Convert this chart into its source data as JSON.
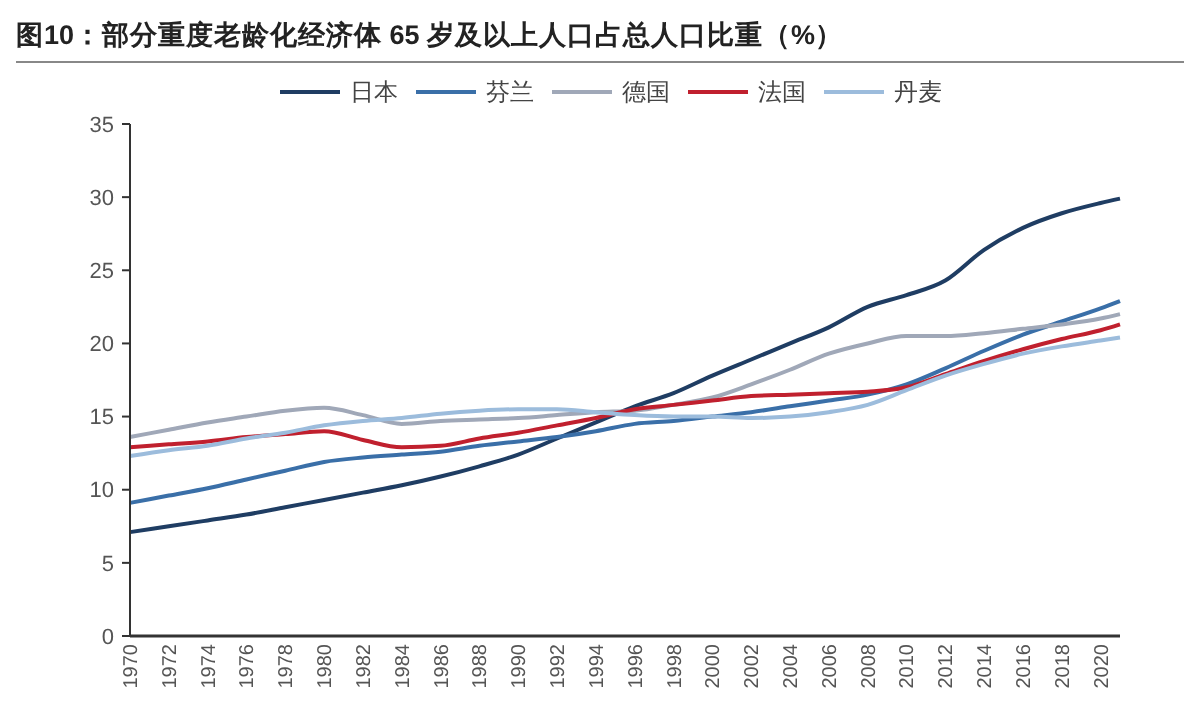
{
  "chart_data": {
    "type": "line",
    "title": "图10：部分重度老龄化经济体 65 岁及以上人口占总人口比重（%）",
    "x": [
      1970,
      1972,
      1974,
      1976,
      1978,
      1980,
      1982,
      1984,
      1986,
      1988,
      1990,
      1992,
      1994,
      1996,
      1998,
      2000,
      2002,
      2004,
      2006,
      2008,
      2010,
      2012,
      2014,
      2016,
      2018,
      2020,
      2021
    ],
    "series": [
      {
        "name": "日本",
        "color": "#1f3d63",
        "values": [
          7.1,
          7.5,
          7.9,
          8.3,
          8.8,
          9.3,
          9.8,
          10.3,
          10.9,
          11.6,
          12.4,
          13.5,
          14.6,
          15.7,
          16.6,
          17.8,
          18.9,
          20.0,
          21.1,
          22.5,
          23.3,
          24.3,
          26.4,
          27.9,
          28.9,
          29.6,
          29.9
        ]
      },
      {
        "name": "芬兰",
        "color": "#3a6fa8",
        "values": [
          9.1,
          9.6,
          10.1,
          10.7,
          11.3,
          11.9,
          12.2,
          12.4,
          12.6,
          13.0,
          13.3,
          13.6,
          14.0,
          14.5,
          14.7,
          15.0,
          15.3,
          15.7,
          16.1,
          16.5,
          17.2,
          18.3,
          19.5,
          20.6,
          21.5,
          22.4,
          22.9
        ]
      },
      {
        "name": "德国",
        "color": "#a0a8b8",
        "values": [
          13.6,
          14.1,
          14.6,
          15.0,
          15.4,
          15.6,
          15.1,
          14.5,
          14.7,
          14.8,
          14.9,
          15.1,
          15.3,
          15.4,
          15.8,
          16.3,
          17.2,
          18.2,
          19.3,
          20.0,
          20.5,
          20.5,
          20.7,
          21.0,
          21.3,
          21.7,
          22.0
        ]
      },
      {
        "name": "法国",
        "color": "#c0202e",
        "values": [
          12.9,
          13.1,
          13.3,
          13.6,
          13.8,
          14.0,
          13.4,
          12.9,
          13.0,
          13.5,
          13.9,
          14.4,
          14.9,
          15.5,
          15.8,
          16.1,
          16.4,
          16.5,
          16.6,
          16.7,
          17.0,
          17.9,
          18.8,
          19.6,
          20.3,
          20.9,
          21.3
        ]
      },
      {
        "name": "丹麦",
        "color": "#9cbcdc",
        "values": [
          12.3,
          12.7,
          13.0,
          13.5,
          13.9,
          14.4,
          14.7,
          14.9,
          15.2,
          15.4,
          15.5,
          15.5,
          15.3,
          15.1,
          15.0,
          15.0,
          14.9,
          15.0,
          15.3,
          15.8,
          16.8,
          17.8,
          18.6,
          19.3,
          19.8,
          20.2,
          20.4
        ]
      }
    ],
    "xlim": [
      1970,
      2021
    ],
    "xticks": [
      1970,
      1972,
      1974,
      1976,
      1978,
      1980,
      1982,
      1984,
      1986,
      1988,
      1990,
      1992,
      1994,
      1996,
      1998,
      2000,
      2002,
      2004,
      2006,
      2008,
      2010,
      2012,
      2014,
      2016,
      2018,
      2020
    ],
    "ylim": [
      0,
      35
    ],
    "yticks": [
      0,
      5,
      10,
      15,
      20,
      25,
      30,
      35
    ],
    "grid": false,
    "legend": "top",
    "marker": "none",
    "line_style": "solid"
  }
}
